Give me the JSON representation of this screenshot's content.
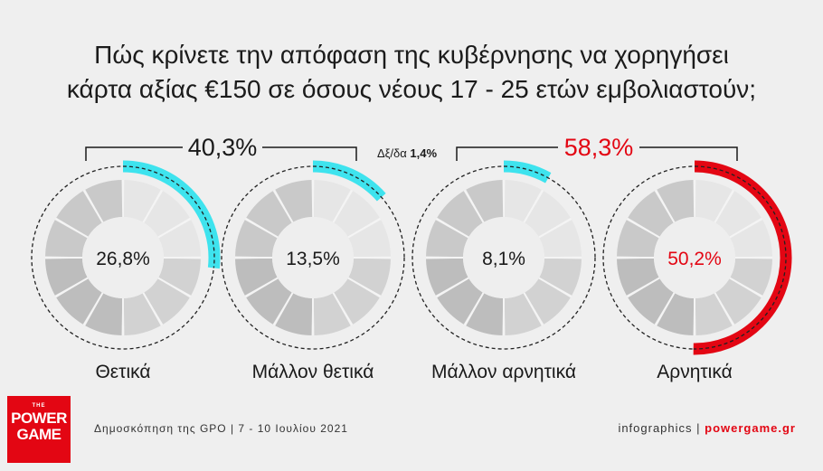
{
  "title": {
    "line1": "Πώς κρίνετε την απόφαση της κυβέρνησης να χορηγήσει",
    "line2": "κάρτα αξίας €150 σε όσους νέους 17 - 25 ετών εμβολιαστούν;"
  },
  "chart_data": {
    "type": "pie",
    "title": "Πώς κρίνετε την απόφαση της κυβέρνησης να χορηγήσει κάρτα αξίας €150 σε όσους νέους 17 - 25 ετών εμβολιαστούν;",
    "categories": [
      "Θετικά",
      "Μάλλον θετικά",
      "Μάλλον αρνητικά",
      "Αρνητικά"
    ],
    "values": [
      26.8,
      13.5,
      8.1,
      50.2
    ],
    "value_labels": [
      "26,8%",
      "13,5%",
      "8,1%",
      "50,2%"
    ],
    "colors": [
      "#3ee3ee",
      "#3ee3ee",
      "#3ee3ee",
      "#e30613"
    ],
    "value_text_colors": [
      "#1a1a1a",
      "#1a1a1a",
      "#1a1a1a",
      "#e30613"
    ],
    "groups": {
      "positive_total": "40,3%",
      "negative_total": "58,3%",
      "dk_label": "Δξ/δα",
      "dk_value": "1,4%"
    }
  },
  "footer": {
    "source": "Δημοσκόπηση της GPO | 7 - 10 Ιουλίου 2021",
    "credit": "infographics | ",
    "site": "powergame.gr"
  },
  "logo": {
    "the": "THE",
    "word1": "POWER",
    "word2": "GAME"
  }
}
